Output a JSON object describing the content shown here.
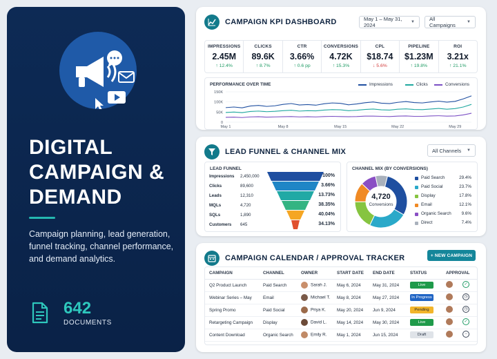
{
  "hero": {
    "title": "DIGITAL CAMPAIGN & DEMAND",
    "description": "Campaign planning, lead generation, funnel tracking, channel performance, and demand analytics.",
    "doc_count": "642",
    "doc_label": "DOCUMENTS",
    "icons": [
      "megaphone-icon",
      "chat-bubble-icon",
      "envelope-icon",
      "play-video-icon",
      "cursor-icon",
      "document-icon"
    ]
  },
  "kpi_dashboard": {
    "title": "CAMPAIGN KPI DASHBOARD",
    "date_range": "May 1 – May 31, 2024",
    "campaign_filter": "All Campaigns",
    "kpis": [
      {
        "label": "IMPRESSIONS",
        "value": "2.45M",
        "delta": "↑ 12.4%",
        "trend": "up"
      },
      {
        "label": "CLICKS",
        "value": "89.6K",
        "delta": "↑ 8.7%",
        "trend": "up"
      },
      {
        "label": "CTR",
        "value": "3.66%",
        "delta": "↑ 0.6 pp",
        "trend": "up"
      },
      {
        "label": "CONVERSIONS",
        "value": "4.72K",
        "delta": "↑ 15.3%",
        "trend": "up"
      },
      {
        "label": "CPL",
        "value": "$18.74",
        "delta": "↓ 5.6%",
        "trend": "down"
      },
      {
        "label": "PIPELINE",
        "value": "$1.23M",
        "delta": "↑ 19.8%",
        "trend": "up"
      },
      {
        "label": "ROI",
        "value": "3.21x",
        "delta": "↑ 21.1%",
        "trend": "up"
      }
    ],
    "performance": {
      "title": "PERFORMANCE OVER TIME",
      "legend": [
        {
          "name": "Impressions",
          "color": "#1f4fa0"
        },
        {
          "name": "Clicks",
          "color": "#1fa89f"
        },
        {
          "name": "Conversions",
          "color": "#7a4fc4"
        }
      ]
    }
  },
  "chart_data": {
    "type": "line",
    "title": "PERFORMANCE OVER TIME",
    "x_tick_labels": [
      "May 1",
      "May 8",
      "May 15",
      "May 22",
      "May 29"
    ],
    "y_tick_labels": [
      "150K",
      "100K",
      "50K",
      "0"
    ],
    "ylim": [
      0,
      150000
    ],
    "x": [
      1,
      2,
      3,
      4,
      5,
      6,
      7,
      8,
      9,
      10,
      11,
      12,
      13,
      14,
      15,
      16,
      17,
      18,
      19,
      20,
      21,
      22,
      23,
      24,
      25,
      26,
      27,
      28,
      29,
      30,
      31
    ],
    "series": [
      {
        "name": "Impressions",
        "color": "#1f4fa0",
        "values": [
          72000,
          75000,
          71000,
          80000,
          83000,
          78000,
          81000,
          88000,
          92000,
          85000,
          87000,
          84000,
          91000,
          95000,
          93000,
          86000,
          90000,
          96000,
          100000,
          94000,
          92000,
          98000,
          102000,
          97000,
          95000,
          100000,
          104000,
          99000,
          103000,
          115000,
          130000
        ]
      },
      {
        "name": "Clicks",
        "color": "#1fa89f",
        "values": [
          48000,
          50000,
          47000,
          53000,
          55000,
          52000,
          54000,
          57000,
          59000,
          55000,
          57000,
          56000,
          60000,
          62000,
          61000,
          57000,
          59000,
          63000,
          65000,
          61000,
          60000,
          64000,
          66000,
          63000,
          62000,
          65000,
          68000,
          64000,
          67000,
          75000,
          88000
        ]
      },
      {
        "name": "Conversions",
        "color": "#7a4fc4",
        "values": [
          24000,
          25000,
          23000,
          26000,
          27000,
          25000,
          26000,
          27000,
          28000,
          26000,
          27000,
          26000,
          28000,
          29000,
          28000,
          27000,
          28000,
          30000,
          30000,
          29000,
          28000,
          30000,
          31000,
          29000,
          29000,
          31000,
          32000,
          30000,
          31000,
          36000,
          44000
        ]
      }
    ],
    "grid": true,
    "legend": "top-right"
  },
  "funnel_mix": {
    "title": "LEAD FUNNEL & CHANNEL MIX",
    "channel_filter": "All Channels",
    "funnel_title": "LEAD FUNNEL",
    "funnel": [
      {
        "stage": "Impressions",
        "value": "2,450,000",
        "pct": "100%",
        "color": "#1f4fa0"
      },
      {
        "stage": "Clicks",
        "value": "89,600",
        "pct": "3.66%",
        "color": "#1f86c6"
      },
      {
        "stage": "Leads",
        "value": "12,310",
        "pct": "13.73%",
        "color": "#21a9a5"
      },
      {
        "stage": "MQLs",
        "value": "4,720",
        "pct": "38.35%",
        "color": "#33b482"
      },
      {
        "stage": "SQLs",
        "value": "1,890",
        "pct": "40.04%",
        "color": "#f5a623"
      },
      {
        "stage": "Customers",
        "value": "645",
        "pct": "34.13%",
        "color": "#e0502f"
      }
    ],
    "mix_title": "CHANNEL MIX (BY CONVERSIONS)",
    "donut_center_value": "4,720",
    "donut_center_label": "Conversions",
    "mix": [
      {
        "name": "Paid Search",
        "pct": "29.4%",
        "value": 29.4,
        "color": "#1f4fa0"
      },
      {
        "name": "Paid Social",
        "pct": "23.7%",
        "value": 23.7,
        "color": "#2aa9c9"
      },
      {
        "name": "Display",
        "pct": "17.8%",
        "value": 17.8,
        "color": "#86c440"
      },
      {
        "name": "Email",
        "pct": "12.1%",
        "value": 12.1,
        "color": "#f08a24"
      },
      {
        "name": "Organic Search",
        "pct": "9.6%",
        "value": 9.6,
        "color": "#8a4fc4"
      },
      {
        "name": "Direct",
        "pct": "7.4%",
        "value": 7.4,
        "color": "#a9b1bc"
      }
    ]
  },
  "tracker": {
    "title": "CAMPAIGN CALENDAR / APPROVAL TRACKER",
    "new_button": "+ NEW CAMPAIGN",
    "columns": [
      "CAMPAIGN",
      "CHANNEL",
      "OWNER",
      "START DATE",
      "END DATE",
      "STATUS",
      "APPROVAL"
    ],
    "rows": [
      {
        "campaign": "Q2 Product Launch",
        "channel": "Paid Search",
        "owner": "Sarah J.",
        "start": "May 6, 2024",
        "end": "May 31, 2024",
        "status": "Live",
        "status_color": "#1f9a4a",
        "approval": "approved"
      },
      {
        "campaign": "Webinar Series – May",
        "channel": "Email",
        "owner": "Michael T.",
        "start": "May 8, 2024",
        "end": "May 27, 2024",
        "status": "In Progress",
        "status_color": "#1f64c4",
        "approval": "pending"
      },
      {
        "campaign": "Spring Promo",
        "channel": "Paid Social",
        "owner": "Priya K.",
        "start": "May 20, 2024",
        "end": "Jun 9, 2024",
        "status": "Pending",
        "status_color": "#f2b52b",
        "approval": "pending"
      },
      {
        "campaign": "Retargeting Campaign",
        "channel": "Display",
        "owner": "David L.",
        "start": "May 14, 2024",
        "end": "May 30, 2024",
        "status": "Live",
        "status_color": "#1f9a4a",
        "approval": "approved"
      },
      {
        "campaign": "Content Download",
        "channel": "Organic Search",
        "owner": "Emily R.",
        "start": "May 1, 2024",
        "end": "Jun 15, 2024",
        "status": "Draft",
        "status_color": "#dfe3e8",
        "approval": "draft"
      }
    ]
  }
}
